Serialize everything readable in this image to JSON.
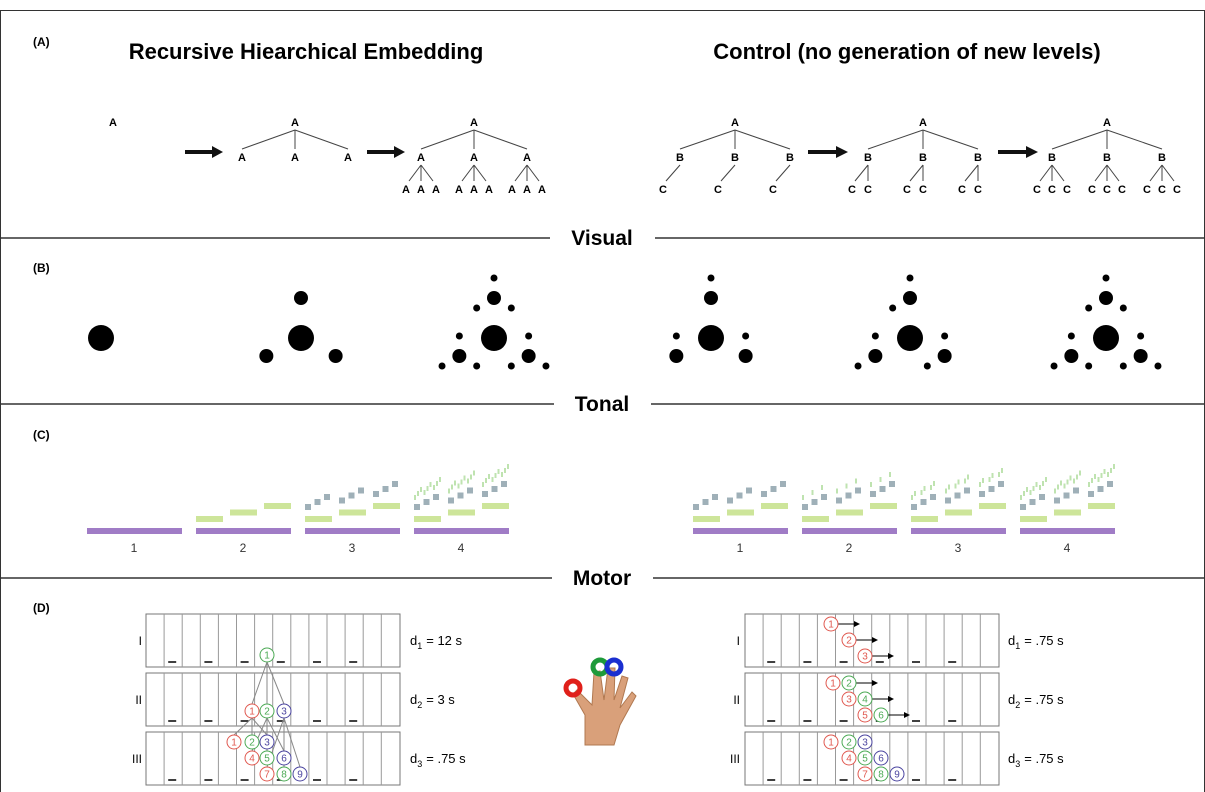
{
  "panels": {
    "a": "(A)",
    "b": "(B)",
    "c": "(C)",
    "d": "(D)"
  },
  "titles": {
    "left": "Recursive Hiearchical Embedding",
    "right": "Control (no generation of new levels)"
  },
  "sections": [
    "Visual",
    "Tonal",
    "Motor"
  ],
  "trees": {
    "left": [
      [
        [
          "A"
        ]
      ],
      [
        [
          "A"
        ],
        [
          "A",
          "A",
          "A"
        ]
      ],
      [
        [
          "A"
        ],
        [
          "A",
          "A",
          "A"
        ],
        [
          "A",
          "A",
          "A",
          "A",
          "A",
          "A",
          "A",
          "A",
          "A"
        ]
      ]
    ],
    "right": [
      [
        [
          "A"
        ],
        [
          "B",
          "B",
          "B"
        ],
        [
          "C",
          "C",
          "C"
        ]
      ],
      [
        [
          "A"
        ],
        [
          "B",
          "B",
          "B"
        ],
        [
          "C",
          "C",
          "C",
          "C",
          "C",
          "C"
        ]
      ],
      [
        [
          "A"
        ],
        [
          "B",
          "B",
          "B"
        ],
        [
          "C",
          "C",
          "C",
          "C",
          "C",
          "C",
          "C",
          "C",
          "C"
        ]
      ]
    ]
  },
  "tonal": {
    "left": [
      "1",
      "2",
      "3",
      "4"
    ],
    "right": [
      "1",
      "2",
      "3",
      "4"
    ]
  },
  "motor": {
    "left": [
      {
        "label": "I",
        "d": "d",
        "sub": "1",
        "value": "= 12 s",
        "circles": [
          {
            "n": "1",
            "color": "#4caa55"
          }
        ]
      },
      {
        "label": "II",
        "d": "d",
        "sub": "2",
        "value": "= 3 s",
        "circles": [
          {
            "n": "1",
            "color": "#e0584f"
          },
          {
            "n": "2",
            "color": "#4caa55"
          },
          {
            "n": "3",
            "color": "#4b45a0"
          }
        ]
      },
      {
        "label": "III",
        "d": "d",
        "sub": "3",
        "value": "= .75 s",
        "circles": [
          {
            "n": "1",
            "color": "#e0584f"
          },
          {
            "n": "2",
            "color": "#4caa55"
          },
          {
            "n": "3",
            "color": "#4b45a0"
          },
          {
            "n": "4",
            "color": "#e0584f"
          },
          {
            "n": "5",
            "color": "#4caa55"
          },
          {
            "n": "6",
            "color": "#4b45a0"
          },
          {
            "n": "7",
            "color": "#e0584f"
          },
          {
            "n": "8",
            "color": "#4caa55"
          },
          {
            "n": "9",
            "color": "#4b45a0"
          }
        ]
      }
    ],
    "right": [
      {
        "label": "I",
        "d": "d",
        "sub": "1",
        "value": "= .75 s",
        "circles": [
          {
            "n": "1",
            "color": "#e0584f"
          },
          {
            "n": "2",
            "color": "#e0584f"
          },
          {
            "n": "3",
            "color": "#e0584f"
          }
        ]
      },
      {
        "label": "II",
        "d": "d",
        "sub": "2",
        "value": "= .75 s",
        "circles": [
          {
            "n": "1",
            "color": "#e0584f"
          },
          {
            "n": "2",
            "color": "#4caa55"
          },
          {
            "n": "3",
            "color": "#e0584f"
          },
          {
            "n": "4",
            "color": "#4caa55"
          },
          {
            "n": "5",
            "color": "#e0584f"
          },
          {
            "n": "6",
            "color": "#4caa55"
          }
        ]
      },
      {
        "label": "III",
        "d": "d",
        "sub": "3",
        "value": "= .75 s",
        "circles": [
          {
            "n": "1",
            "color": "#e0584f"
          },
          {
            "n": "2",
            "color": "#4caa55"
          },
          {
            "n": "3",
            "color": "#4b45a0"
          },
          {
            "n": "4",
            "color": "#e0584f"
          },
          {
            "n": "5",
            "color": "#4caa55"
          },
          {
            "n": "6",
            "color": "#4b45a0"
          },
          {
            "n": "7",
            "color": "#e0584f"
          },
          {
            "n": "8",
            "color": "#4caa55"
          },
          {
            "n": "9",
            "color": "#4b45a0"
          }
        ]
      }
    ]
  }
}
